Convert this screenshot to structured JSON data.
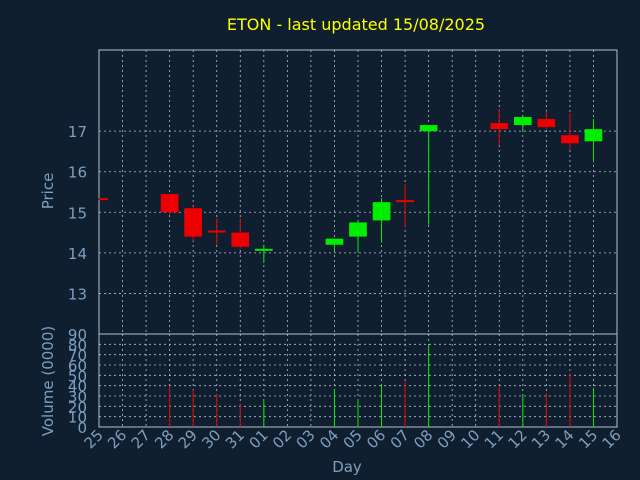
{
  "colors": {
    "background": "#0f1f30",
    "frame": "#b7bfca",
    "grid": "#b7bfca",
    "title": "#ffff00",
    "axis_text": "#7f9fc0",
    "up": "#00ee00",
    "down": "#ee0000"
  },
  "chart_data": [
    {
      "type": "candlestick",
      "title": "ETON - last updated 15/08/2025",
      "ylabel": "Price",
      "yticks": [
        13,
        14,
        15,
        16,
        17
      ],
      "ylim": [
        12,
        19
      ],
      "grid": true,
      "categories": [
        "25",
        "26",
        "27",
        "28",
        "29",
        "30",
        "31",
        "01",
        "02",
        "03",
        "04",
        "05",
        "06",
        "07",
        "08",
        "09",
        "10",
        "11",
        "12",
        "13",
        "14",
        "15",
        "16"
      ],
      "candles": [
        {
          "day": "25",
          "open": 15.35,
          "close": 15.3,
          "high": 15.35,
          "low": 15.3
        },
        {
          "day": "28",
          "open": 15.45,
          "close": 15.0,
          "high": 15.45,
          "low": 14.95
        },
        {
          "day": "29",
          "open": 15.1,
          "close": 14.4,
          "high": 15.15,
          "low": 14.3
        },
        {
          "day": "30",
          "open": 14.55,
          "close": 14.5,
          "high": 14.85,
          "low": 14.2
        },
        {
          "day": "31",
          "open": 14.5,
          "close": 14.15,
          "high": 14.85,
          "low": 14.1
        },
        {
          "day": "01",
          "open": 14.1,
          "close": 14.1,
          "high": 14.2,
          "low": 13.75
        },
        {
          "day": "04",
          "open": 14.2,
          "close": 14.35,
          "high": 14.35,
          "low": 14.05
        },
        {
          "day": "05",
          "open": 14.4,
          "close": 14.75,
          "high": 14.75,
          "low": 14.0
        },
        {
          "day": "06",
          "open": 14.8,
          "close": 15.25,
          "high": 15.35,
          "low": 14.25
        },
        {
          "day": "07",
          "open": 15.3,
          "close": 15.25,
          "high": 15.7,
          "low": 14.65
        },
        {
          "day": "08",
          "open": 17.0,
          "close": 17.15,
          "high": 17.15,
          "low": 14.7
        },
        {
          "day": "11",
          "open": 17.2,
          "close": 17.05,
          "high": 17.55,
          "low": 16.65
        },
        {
          "day": "12",
          "open": 17.15,
          "close": 17.35,
          "high": 17.35,
          "low": 17.0
        },
        {
          "day": "13",
          "open": 17.3,
          "close": 17.1,
          "high": 17.5,
          "low": 17.05
        },
        {
          "day": "14",
          "open": 16.9,
          "close": 16.7,
          "high": 17.45,
          "low": 16.55
        },
        {
          "day": "15",
          "open": 16.75,
          "close": 17.05,
          "high": 17.3,
          "low": 16.25
        }
      ]
    },
    {
      "type": "bar",
      "ylabel": "Volume (0000)",
      "xlabel": "Day",
      "yticks": [
        0,
        10,
        20,
        30,
        40,
        50,
        60,
        70,
        80,
        90
      ],
      "ylim": [
        0,
        90
      ],
      "categories": [
        "25",
        "26",
        "27",
        "28",
        "29",
        "30",
        "31",
        "01",
        "02",
        "03",
        "04",
        "05",
        "06",
        "07",
        "08",
        "09",
        "10",
        "11",
        "12",
        "13",
        "14",
        "15",
        "16"
      ],
      "series": [
        {
          "values": [
            null,
            null,
            null,
            40,
            36,
            32,
            22,
            25,
            null,
            null,
            37,
            27,
            40,
            44,
            80,
            null,
            null,
            40,
            31,
            33,
            52,
            38,
            null
          ],
          "direction": [
            null,
            null,
            null,
            "down",
            "down",
            "down",
            "down",
            "up",
            null,
            null,
            "up",
            "up",
            "up",
            "down",
            "up",
            null,
            null,
            "down",
            "up",
            "down",
            "down",
            "up",
            null
          ]
        }
      ]
    }
  ]
}
